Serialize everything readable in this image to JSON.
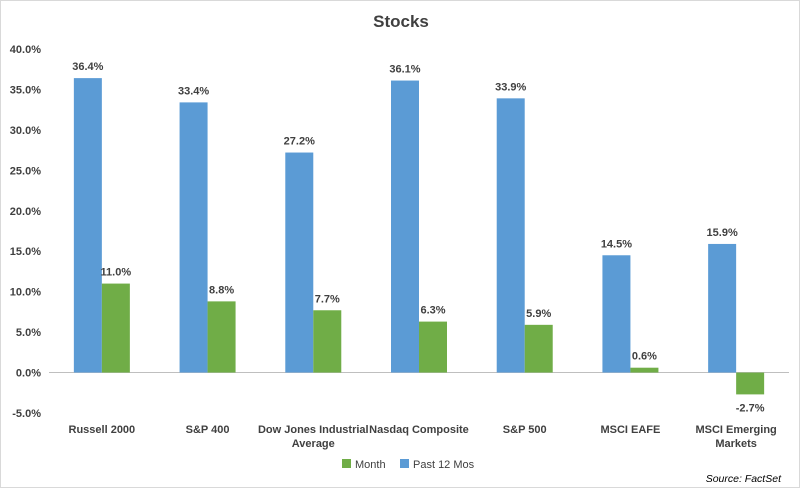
{
  "chart_data": {
    "type": "bar",
    "title": "Stocks",
    "categories": [
      [
        "Russell 2000"
      ],
      [
        "S&P 400"
      ],
      [
        "Dow Jones Industrial",
        "Average"
      ],
      [
        "Nasdaq Composite"
      ],
      [
        "S&P 500"
      ],
      [
        "MSCI EAFE"
      ],
      [
        "MSCI Emerging",
        "Markets"
      ]
    ],
    "series": [
      {
        "name": "Past 12 Mos",
        "color": "#5b9bd5",
        "values": [
          36.4,
          33.4,
          27.2,
          36.1,
          33.9,
          14.5,
          15.9
        ],
        "labels": [
          "36.4%",
          "33.4%",
          "27.2%",
          "36.1%",
          "33.9%",
          "14.5%",
          "15.9%"
        ]
      },
      {
        "name": "Month",
        "color": "#70ad47",
        "values": [
          11.0,
          8.8,
          7.7,
          6.3,
          5.9,
          0.6,
          -2.7
        ],
        "labels": [
          "11.0%",
          "8.8%",
          "7.7%",
          "6.3%",
          "5.9%",
          "0.6%",
          "-2.7%"
        ]
      }
    ],
    "ylim": [
      -5,
      40
    ],
    "yticks": [
      -5,
      0,
      5,
      10,
      15,
      20,
      25,
      30,
      35,
      40
    ],
    "ytick_labels": [
      "-5.0%",
      "0.0%",
      "5.0%",
      "10.0%",
      "15.0%",
      "20.0%",
      "25.0%",
      "30.0%",
      "35.0%",
      "40.0%"
    ],
    "grid": false,
    "legend": {
      "placement": "bottom-center",
      "order": [
        "Month",
        "Past 12 Mos"
      ]
    },
    "source": "Source: FactSet"
  }
}
